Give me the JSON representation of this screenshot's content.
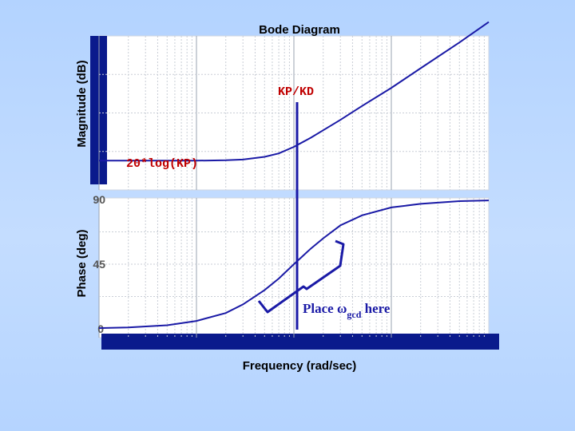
{
  "chart_data": [
    {
      "type": "line",
      "title": "Bode Diagram",
      "ylabel": "Magnitude (dB)",
      "xlabel": "",
      "x_scale": "log",
      "xlim": [
        0.01,
        100
      ],
      "ylim": [
        0,
        40
      ],
      "grid": true,
      "series": [
        {
          "x": [
            0.01,
            0.03,
            0.1,
            0.2,
            0.3,
            0.5,
            0.7,
            1,
            1.5,
            2,
            3,
            5,
            10,
            20,
            50,
            100
          ],
          "y": [
            7.6,
            7.6,
            7.6,
            7.7,
            7.9,
            8.6,
            9.5,
            11.2,
            13.6,
            15.5,
            18.2,
            21.8,
            26.5,
            31.6,
            38.3,
            43.6
          ]
        }
      ],
      "annotations": [
        {
          "text": "KP/KD",
          "x": 1,
          "y": 36
        },
        {
          "text": "20*log(KP)",
          "x": 0.01,
          "y": 9
        }
      ]
    },
    {
      "type": "line",
      "ylabel": "Phase (deg)",
      "xlabel": "Frequency  (rad/sec)",
      "x_scale": "log",
      "xlim": [
        0.01,
        100
      ],
      "ylim": [
        0,
        90
      ],
      "yticks": [
        0,
        45,
        90
      ],
      "grid": true,
      "series": [
        {
          "x": [
            0.01,
            0.02,
            0.05,
            0.1,
            0.2,
            0.3,
            0.5,
            0.7,
            1,
            1.5,
            2,
            3,
            5,
            10,
            20,
            50,
            100
          ],
          "y": [
            0.5,
            1,
            2.5,
            5.5,
            11,
            17,
            27,
            35,
            45,
            56,
            63,
            72,
            79,
            84.5,
            87,
            88.9,
            89.4
          ]
        }
      ],
      "annotations": [
        {
          "text": "Place ",
          "symbol": "ω",
          "subscript": "gcd",
          "suffix": " here",
          "x": 1,
          "y": 15
        }
      ]
    }
  ]
}
